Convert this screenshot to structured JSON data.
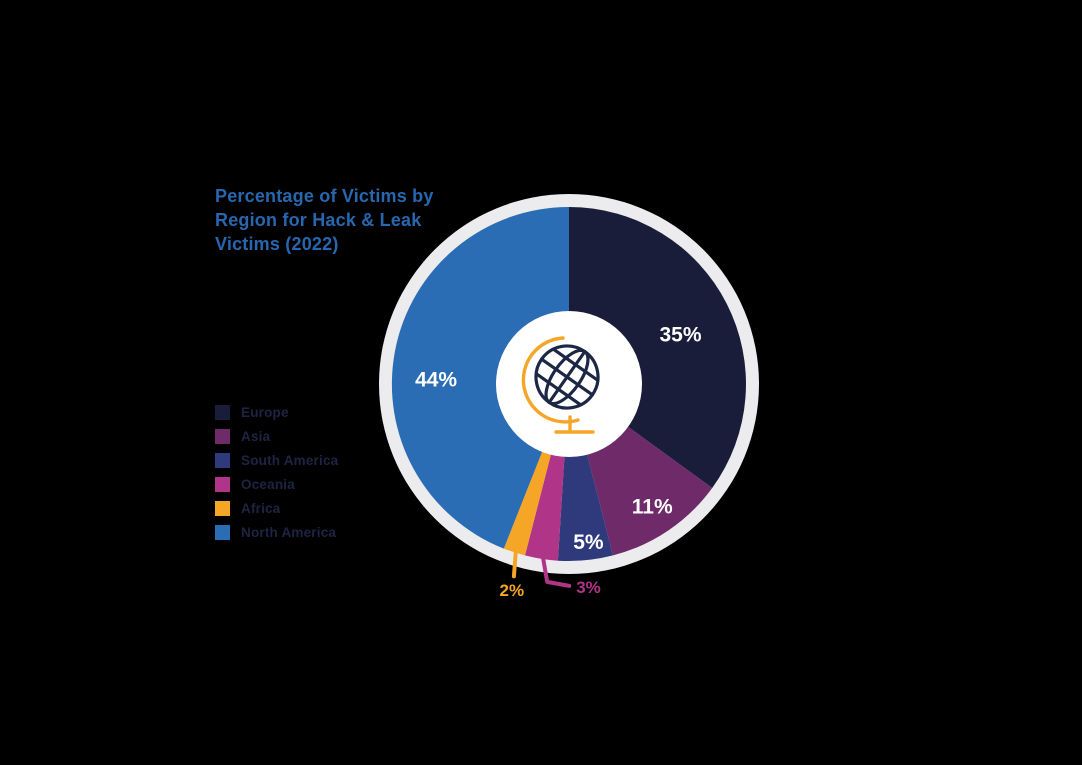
{
  "title": {
    "lines": [
      "Percentage of Victims by",
      "Region for Hack & Leak",
      "Victims (2022)"
    ]
  },
  "colors": {
    "background": "#000000",
    "title": "#2767af",
    "legend_text": "#1e2442",
    "ring": "#ececee",
    "hole": "#ffffff",
    "value_label": "#ffffff",
    "globe_navy": "#1c2745",
    "globe_orange": "#f6a626"
  },
  "chart_data": {
    "type": "pie",
    "donut": true,
    "title": "Percentage of Victims by Region for Hack & Leak Victims (2022)",
    "start_angle_deg": 0,
    "direction": "clockwise",
    "legend_position": "left",
    "center_icon": "desk-globe",
    "slices": [
      {
        "label": "Europe",
        "value": 35,
        "display": "35%",
        "color": "#191d3a",
        "callout": "inside",
        "label_angle": 66,
        "label_r": 122
      },
      {
        "label": "Asia",
        "value": 11,
        "display": "11%",
        "color": "#6e2a69",
        "callout": "inside",
        "label_angle": 145.8,
        "label_r": 148
      },
      {
        "label": "South America",
        "value": 5,
        "display": "5%",
        "color": "#2e3a7c",
        "callout": "inside",
        "label_angle": 173,
        "label_r": 159
      },
      {
        "label": "Oceania",
        "value": 3,
        "display": "3%",
        "color": "#b03487",
        "callout": "elbow"
      },
      {
        "label": "Africa",
        "value": 2,
        "display": "2%",
        "color": "#f6a626",
        "callout": "straight"
      },
      {
        "label": "North America",
        "value": 44,
        "display": "44%",
        "color": "#2a6db5",
        "callout": "inside",
        "label_angle": 272,
        "label_r": 133
      }
    ]
  }
}
